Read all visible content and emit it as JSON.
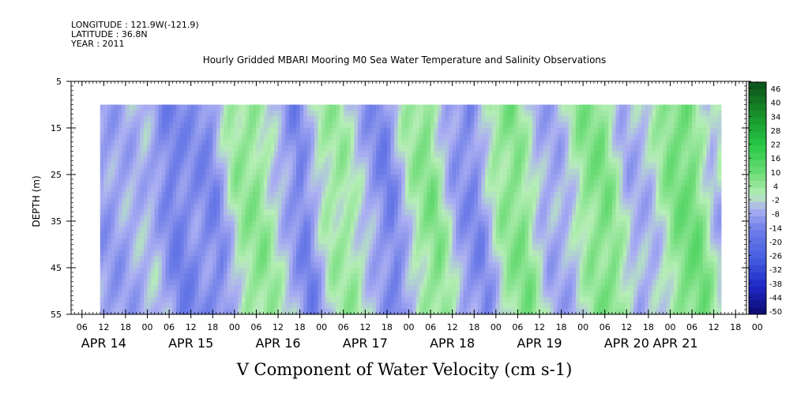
{
  "header": {
    "longitude": "LONGITUDE : 121.9W(-121.9)",
    "latitude": "LATITUDE : 36.8N",
    "year": "YEAR : 2011"
  },
  "chart_data": {
    "type": "heatmap",
    "title": "Hourly Gridded MBARI Mooring M0 Sea Water Temperature and Salinity Observations",
    "xlabel": "V Component of Water Velocity (cm s-1)",
    "ylabel": "DEPTH (m)",
    "y_range": [
      5,
      55
    ],
    "y_ticks": [
      5,
      15,
      25,
      35,
      45,
      55
    ],
    "y_inverted": true,
    "data_depth_range": [
      10,
      55
    ],
    "x_hour_labels": [
      "06",
      "12",
      "18",
      "00",
      "06",
      "12",
      "18",
      "00",
      "06",
      "12",
      "18",
      "00",
      "06",
      "12",
      "18",
      "00",
      "06",
      "12",
      "18",
      "00",
      "06",
      "12",
      "18",
      "00",
      "06",
      "12",
      "18",
      "00",
      "06",
      "12",
      "18",
      "00"
    ],
    "x_day_labels": [
      "APR 14",
      "APR 15",
      "APR 16",
      "APR 17",
      "APR 18",
      "APR 19",
      "APR 20",
      "APR 21"
    ],
    "colorbar": {
      "labels": [
        "46",
        "40",
        "34",
        "28",
        "22",
        "16",
        "10",
        "4",
        "-2",
        "-8",
        "-14",
        "-20",
        "-26",
        "-32",
        "-38",
        "-44",
        "-50"
      ],
      "levels": [
        -50,
        -47,
        -44,
        -41,
        -38,
        -35,
        -32,
        -29,
        -26,
        -23,
        -20,
        -17,
        -14,
        -11,
        -8,
        -5,
        -2,
        1,
        4,
        7,
        10,
        13,
        16,
        19,
        22,
        25,
        28,
        31,
        34,
        37,
        40,
        43,
        46,
        49
      ]
    },
    "field_profile_hours_from_apr14_00": [
      {
        "h": 11,
        "v": -8
      },
      {
        "h": 16,
        "v": -6
      },
      {
        "h": 22,
        "v": -4
      },
      {
        "h": 28,
        "v": -14
      },
      {
        "h": 34,
        "v": -10
      },
      {
        "h": 40,
        "v": -12
      },
      {
        "h": 46,
        "v": 4
      },
      {
        "h": 52,
        "v": 6
      },
      {
        "h": 58,
        "v": -4
      },
      {
        "h": 64,
        "v": -14
      },
      {
        "h": 70,
        "v": 2
      },
      {
        "h": 76,
        "v": 4
      },
      {
        "h": 82,
        "v": -6
      },
      {
        "h": 88,
        "v": -14
      },
      {
        "h": 94,
        "v": 2
      },
      {
        "h": 100,
        "v": 8
      },
      {
        "h": 106,
        "v": -8
      },
      {
        "h": 112,
        "v": -12
      },
      {
        "h": 118,
        "v": 4
      },
      {
        "h": 124,
        "v": 8
      },
      {
        "h": 130,
        "v": -6
      },
      {
        "h": 136,
        "v": -6
      },
      {
        "h": 142,
        "v": 6
      },
      {
        "h": 148,
        "v": 8
      },
      {
        "h": 154,
        "v": -6
      },
      {
        "h": 160,
        "v": -4
      },
      {
        "h": 166,
        "v": 8
      },
      {
        "h": 172,
        "v": 10
      },
      {
        "h": 178,
        "v": -6
      },
      {
        "h": 182,
        "v": 4
      }
    ],
    "colors": {
      "strong_positive": "#0c5a1a",
      "positive": "#33cc55",
      "near_zero_positive": "#b8f0b8",
      "near_zero_negative": "#b0b4f0",
      "negative": "#6f7fe6",
      "strong_negative": "#0a0a6e"
    }
  }
}
